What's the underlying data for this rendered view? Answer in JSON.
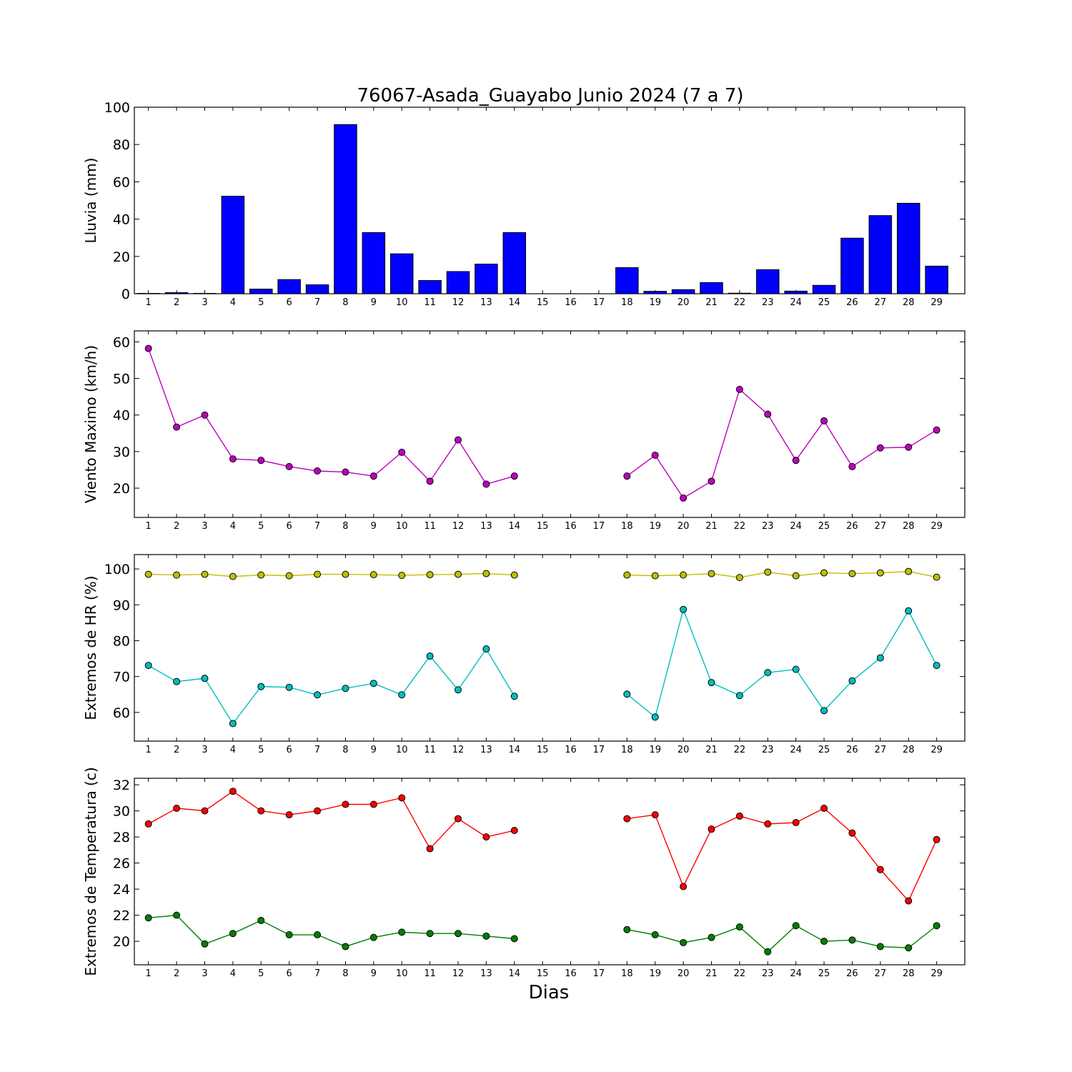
{
  "chart_data": [
    {
      "type": "bar",
      "title": "76067-Asada_Guayabo Junio 2024  (7 a 7)",
      "ylabel": "Lluvia (mm)",
      "xlabel": "",
      "ylim": [
        0,
        100
      ],
      "yticks": [
        0,
        20,
        40,
        60,
        80,
        100
      ],
      "categories": [
        "1",
        "2",
        "3",
        "4",
        "5",
        "6",
        "7",
        "8",
        "9",
        "10",
        "11",
        "12",
        "13",
        "14",
        "15",
        "16",
        "17",
        "18",
        "19",
        "20",
        "21",
        "22",
        "23",
        "24",
        "25",
        "26",
        "27",
        "28",
        "29"
      ],
      "series": [
        {
          "values": [
            0.2,
            0.6,
            0.2,
            52.3,
            2.5,
            7.6,
            4.8,
            90.7,
            32.8,
            21.4,
            7.1,
            11.9,
            15.9,
            32.8,
            null,
            null,
            null,
            14.0,
            1.3,
            2.2,
            6.0,
            0.3,
            12.9,
            1.4,
            4.5,
            29.8,
            41.9,
            48.5,
            14.8
          ],
          "color": "#0000ff"
        }
      ]
    },
    {
      "type": "line",
      "ylabel": "Viento Maximo (km/h)",
      "ylim": [
        12,
        63
      ],
      "yticks": [
        20,
        30,
        40,
        50,
        60
      ],
      "categories": [
        "1",
        "2",
        "3",
        "4",
        "5",
        "6",
        "7",
        "8",
        "9",
        "10",
        "11",
        "12",
        "13",
        "14",
        "15",
        "16",
        "17",
        "18",
        "19",
        "20",
        "21",
        "22",
        "23",
        "24",
        "25",
        "26",
        "27",
        "28",
        "29"
      ],
      "series": [
        {
          "values": [
            58.2,
            36.7,
            40.0,
            28.0,
            27.6,
            25.9,
            24.7,
            24.4,
            23.3,
            29.8,
            21.9,
            33.2,
            21.1,
            23.3,
            null,
            null,
            null,
            23.3,
            29.0,
            17.3,
            21.9,
            47.0,
            40.2,
            27.6,
            38.4,
            25.9,
            31.0,
            31.2,
            35.9
          ],
          "color": "#bf00bf"
        }
      ]
    },
    {
      "type": "line",
      "ylabel": "Extremos de HR (%)",
      "ylim": [
        52,
        104
      ],
      "yticks": [
        60,
        70,
        80,
        90,
        100
      ],
      "categories": [
        "1",
        "2",
        "3",
        "4",
        "5",
        "6",
        "7",
        "8",
        "9",
        "10",
        "11",
        "12",
        "13",
        "14",
        "15",
        "16",
        "17",
        "18",
        "19",
        "20",
        "21",
        "22",
        "23",
        "24",
        "25",
        "26",
        "27",
        "28",
        "29"
      ],
      "series": [
        {
          "values": [
            98.5,
            98.3,
            98.5,
            97.9,
            98.3,
            98.1,
            98.5,
            98.5,
            98.4,
            98.2,
            98.4,
            98.5,
            98.7,
            98.3,
            null,
            null,
            null,
            98.3,
            98.1,
            98.3,
            98.7,
            97.6,
            99.1,
            98.1,
            98.9,
            98.7,
            98.9,
            99.3,
            97.7
          ],
          "color": "#bfbf00"
        },
        {
          "values": [
            73.1,
            68.6,
            69.5,
            56.9,
            67.2,
            67.0,
            64.9,
            66.7,
            68.1,
            64.9,
            75.7,
            66.3,
            77.7,
            64.5,
            null,
            null,
            null,
            65.1,
            58.7,
            88.7,
            68.3,
            64.7,
            71.1,
            72.0,
            60.5,
            68.8,
            75.2,
            88.3,
            73.1
          ],
          "color": "#00bfbf"
        }
      ]
    },
    {
      "type": "line",
      "ylabel": "Extremos de Temperatura (c)",
      "xlabel": "Dias",
      "ylim": [
        18.2,
        32.5
      ],
      "yticks": [
        20,
        22,
        24,
        26,
        28,
        30,
        32
      ],
      "categories": [
        "1",
        "2",
        "3",
        "4",
        "5",
        "6",
        "7",
        "8",
        "9",
        "10",
        "11",
        "12",
        "13",
        "14",
        "15",
        "16",
        "17",
        "18",
        "19",
        "20",
        "21",
        "22",
        "23",
        "24",
        "25",
        "26",
        "27",
        "28",
        "29"
      ],
      "series": [
        {
          "values": [
            29.0,
            30.2,
            30.0,
            31.5,
            30.0,
            29.7,
            30.0,
            30.5,
            30.5,
            31.0,
            27.1,
            29.4,
            28.0,
            28.5,
            null,
            null,
            null,
            29.4,
            29.7,
            24.2,
            28.6,
            29.6,
            29.0,
            29.1,
            30.2,
            28.3,
            25.5,
            23.1,
            27.8
          ],
          "color": "#ff0000"
        },
        {
          "values": [
            21.8,
            22.0,
            19.8,
            20.6,
            21.6,
            20.5,
            20.5,
            19.6,
            20.3,
            20.7,
            20.6,
            20.6,
            20.4,
            20.2,
            null,
            null,
            null,
            20.9,
            20.5,
            19.9,
            20.3,
            21.1,
            19.2,
            21.2,
            20.0,
            20.1,
            19.6,
            19.5,
            21.2
          ],
          "color": "#008000"
        }
      ]
    }
  ]
}
